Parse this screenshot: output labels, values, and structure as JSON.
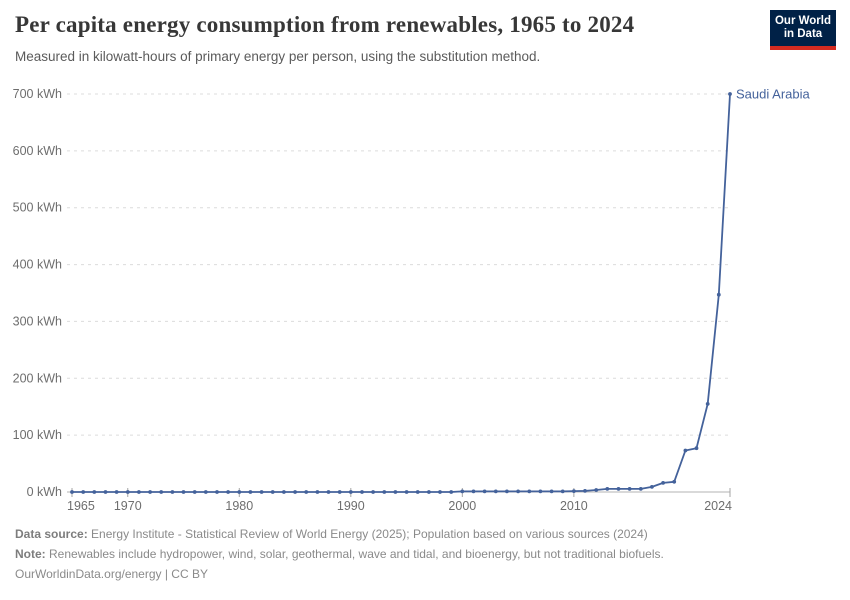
{
  "header": {
    "title": "Per capita energy consumption from renewables, 1965 to 2024",
    "subtitle": "Measured in kilowatt-hours of primary energy per person, using the substitution method.",
    "logo": {
      "line1": "Our World",
      "line2": "in Data"
    }
  },
  "chart_data": {
    "type": "line",
    "title": "Per capita energy consumption from renewables, 1965 to 2024",
    "xlabel": "",
    "ylabel": "kWh",
    "xlim": [
      1965,
      2024
    ],
    "ylim": [
      0,
      700
    ],
    "grid": "horizontal-dashed",
    "legend_position": "end-of-line-label",
    "xticks": [
      1965,
      1970,
      1980,
      1990,
      2000,
      2010,
      2024
    ],
    "xtick_labels": [
      "1965",
      "1970",
      "1980",
      "1990",
      "2000",
      "2010",
      "2024"
    ],
    "yticks": [
      0,
      100,
      200,
      300,
      400,
      500,
      600,
      700
    ],
    "ytick_labels": [
      "0 kWh",
      "100 kWh",
      "200 kWh",
      "300 kWh",
      "400 kWh",
      "500 kWh",
      "600 kWh",
      "700 kWh"
    ],
    "series": [
      {
        "name": "Saudi Arabia",
        "color": "#44629b",
        "x": [
          1965,
          1966,
          1967,
          1968,
          1969,
          1970,
          1971,
          1972,
          1973,
          1974,
          1975,
          1976,
          1977,
          1978,
          1979,
          1980,
          1981,
          1982,
          1983,
          1984,
          1985,
          1986,
          1987,
          1988,
          1989,
          1990,
          1991,
          1992,
          1993,
          1994,
          1995,
          1996,
          1997,
          1998,
          1999,
          2000,
          2001,
          2002,
          2003,
          2004,
          2005,
          2006,
          2007,
          2008,
          2009,
          2010,
          2011,
          2012,
          2013,
          2014,
          2015,
          2016,
          2017,
          2018,
          2019,
          2020,
          2021,
          2022,
          2023,
          2024
        ],
        "values": [
          0,
          0,
          0,
          0,
          0,
          0,
          0,
          0,
          0,
          0,
          0,
          0,
          0,
          0,
          0,
          0,
          0,
          0,
          0,
          0,
          0,
          0,
          0,
          0,
          0,
          0,
          0,
          0,
          0,
          0,
          0,
          0,
          0,
          0,
          0,
          1,
          1,
          1,
          1,
          1,
          1,
          1,
          1,
          1,
          1,
          1.5,
          2,
          3.5,
          5.5,
          5.5,
          5.5,
          5.5,
          9,
          16,
          18,
          73,
          77,
          155,
          347,
          700
        ]
      }
    ]
  },
  "footer": {
    "data_source_label": "Data source:",
    "data_source_text": "Energy Institute - Statistical Review of World Energy (2025); Population based on various sources (2024)",
    "note_label": "Note:",
    "note_text": "Renewables include hydropower, wind, solar, geothermal, wave and tidal, and bioenergy, but not traditional biofuels.",
    "license": "OurWorldinData.org/energy | CC BY"
  },
  "colors": {
    "grid": "#dcdcdc",
    "axis": "#b3b3b3",
    "tick": "#a5a5a5",
    "accent_line": "#44629b",
    "logo_bg": "#002147",
    "logo_bar": "#d42b20"
  }
}
